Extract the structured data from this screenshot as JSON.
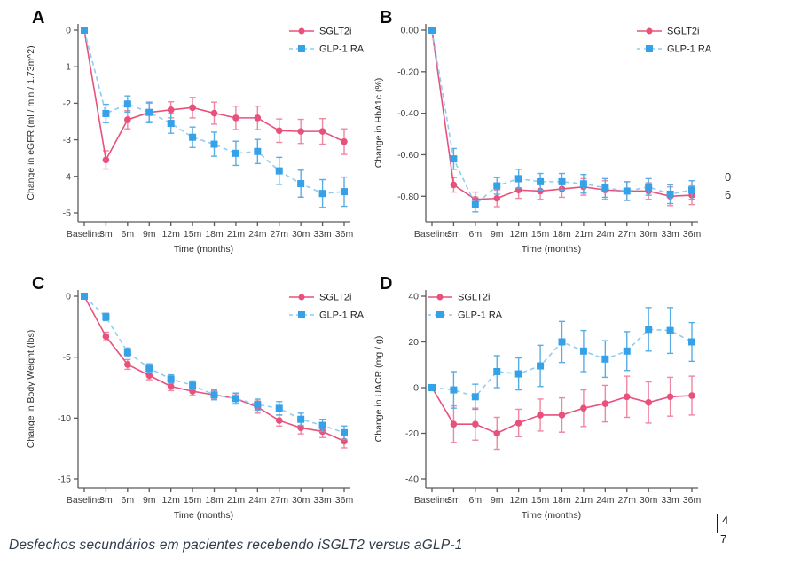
{
  "page": {
    "caption": "Desfechos secundários em pacientes recebendo iSGLT2 versus aGLP-1",
    "fragments": {
      "mid_right_top": "0",
      "mid_right_bottom": "6",
      "page_number_top": "4",
      "page_number_bottom": "7"
    }
  },
  "theme": {
    "sglt2i_color": "#e8517c",
    "sglt2i_err_color": "#ef86a2",
    "glp1_marker_color": "#35a2e8",
    "glp1_line_color": "#8fccf2",
    "glp1_err_color": "#57ade6",
    "axis_color": "#5a5a5a",
    "tick_text_color": "#3c3c3c",
    "caption_color": "#2e3c4b"
  },
  "chart_data": [
    {
      "type": "line",
      "panel_label": "A",
      "ylabel": "Change in eGFR (ml / min / 1.73m^2)",
      "xlabel": "Time (months)",
      "categories": [
        "Baseline",
        "3m",
        "6m",
        "9m",
        "12m",
        "15m",
        "18m",
        "21m",
        "24m",
        "27m",
        "30m",
        "33m",
        "36m"
      ],
      "ylim": [
        -5,
        0
      ],
      "y_ticks": [
        {
          "label": "0",
          "value": 0
        },
        {
          "label": "-1",
          "value": -1
        },
        {
          "label": "-2",
          "value": -2
        },
        {
          "label": "-3",
          "value": -3
        },
        {
          "label": "-4",
          "value": -4
        },
        {
          "label": "-5",
          "value": -5
        }
      ],
      "legend_pos": "top-right",
      "grid": false,
      "series": [
        {
          "name": "SGLT2i",
          "marker": "circle",
          "dash": false,
          "values": [
            0,
            -3.55,
            -2.45,
            -2.25,
            -2.18,
            -2.12,
            -2.27,
            -2.4,
            -2.4,
            -2.75,
            -2.77,
            -2.77,
            -3.05
          ],
          "errors": [
            0,
            0.25,
            0.25,
            0.25,
            0.22,
            0.28,
            0.3,
            0.32,
            0.32,
            0.32,
            0.33,
            0.35,
            0.35
          ]
        },
        {
          "name": "GLP-1 RA",
          "marker": "square",
          "dash": true,
          "values": [
            0,
            -2.28,
            -2.02,
            -2.25,
            -2.55,
            -2.93,
            -3.12,
            -3.37,
            -3.32,
            -3.85,
            -4.2,
            -4.47,
            -4.42
          ],
          "errors": [
            0,
            0.25,
            0.22,
            0.28,
            0.27,
            0.28,
            0.33,
            0.33,
            0.33,
            0.37,
            0.37,
            0.38,
            0.4
          ]
        }
      ]
    },
    {
      "type": "line",
      "panel_label": "B",
      "ylabel": "Change in HbA1c (%)",
      "xlabel": "Time (months)",
      "categories": [
        "Baseline",
        "3m",
        "6m",
        "9m",
        "12m",
        "15m",
        "18m",
        "21m",
        "24m",
        "27m",
        "30m",
        "33m",
        "36m"
      ],
      "ylim": [
        -0.88,
        0
      ],
      "y_ticks": [
        {
          "label": "0.00",
          "value": 0
        },
        {
          "label": "-0.20",
          "value": -0.2
        },
        {
          "label": "-0.40",
          "value": -0.4
        },
        {
          "label": "-0.60",
          "value": -0.6
        },
        {
          "label": "-0.80",
          "value": -0.8
        }
      ],
      "legend_pos": "top-right",
      "grid": false,
      "series": [
        {
          "name": "SGLT2i",
          "marker": "circle",
          "dash": false,
          "values": [
            0,
            -0.745,
            -0.815,
            -0.81,
            -0.77,
            -0.775,
            -0.765,
            -0.755,
            -0.77,
            -0.775,
            -0.775,
            -0.8,
            -0.795
          ],
          "errors": [
            0,
            0.035,
            0.035,
            0.04,
            0.04,
            0.04,
            0.04,
            0.04,
            0.045,
            0.045,
            0.04,
            0.045,
            0.045
          ]
        },
        {
          "name": "GLP-1 RA",
          "marker": "square",
          "dash": true,
          "values": [
            0,
            -0.62,
            -0.84,
            -0.75,
            -0.715,
            -0.73,
            -0.73,
            -0.74,
            -0.76,
            -0.775,
            -0.755,
            -0.79,
            -0.77
          ],
          "errors": [
            0,
            0.05,
            0.035,
            0.04,
            0.045,
            0.04,
            0.04,
            0.045,
            0.045,
            0.045,
            0.04,
            0.045,
            0.045
          ]
        }
      ]
    },
    {
      "type": "line",
      "panel_label": "C",
      "ylabel": "Change in Body Weight (lbs)",
      "xlabel": "Time (months)",
      "categories": [
        "Baseline",
        "3m",
        "6m",
        "9m",
        "12m",
        "15m",
        "18m",
        "21m",
        "24m",
        "27m",
        "30m",
        "33m",
        "36m"
      ],
      "ylim": [
        -15,
        0
      ],
      "y_ticks": [
        {
          "label": "0",
          "value": 0
        },
        {
          "label": "-5",
          "value": -5
        },
        {
          "label": "-10",
          "value": -10
        },
        {
          "label": "-15",
          "value": -15
        }
      ],
      "legend_pos": "top-right",
      "grid": false,
      "series": [
        {
          "name": "SGLT2i",
          "marker": "circle",
          "dash": false,
          "values": [
            0,
            -3.3,
            -5.6,
            -6.5,
            -7.4,
            -7.8,
            -8.1,
            -8.4,
            -9.1,
            -10.2,
            -10.8,
            -11.1,
            -11.9
          ],
          "errors": [
            0,
            0.35,
            0.4,
            0.35,
            0.35,
            0.35,
            0.35,
            0.4,
            0.5,
            0.45,
            0.5,
            0.5,
            0.55
          ]
        },
        {
          "name": "GLP-1 RA",
          "marker": "square",
          "dash": true,
          "values": [
            0,
            -1.7,
            -4.6,
            -5.9,
            -6.8,
            -7.3,
            -8.1,
            -8.4,
            -8.9,
            -9.2,
            -10.1,
            -10.6,
            -11.2
          ],
          "errors": [
            0,
            0.3,
            0.35,
            0.35,
            0.35,
            0.35,
            0.4,
            0.45,
            0.45,
            0.55,
            0.5,
            0.5,
            0.55
          ]
        }
      ]
    },
    {
      "type": "line",
      "panel_label": "D",
      "ylabel": "Change in UACR (mg / g)",
      "xlabel": "Time (months)",
      "categories": [
        "Baseline",
        "3m",
        "6m",
        "9m",
        "12m",
        "15m",
        "18m",
        "21m",
        "24m",
        "27m",
        "30m",
        "33m",
        "36m"
      ],
      "ylim": [
        -40,
        40
      ],
      "y_ticks": [
        {
          "label": "40",
          "value": 40
        },
        {
          "label": "20",
          "value": 20
        },
        {
          "label": "0",
          "value": 0
        },
        {
          "label": "-20",
          "value": -20
        },
        {
          "label": "-40",
          "value": -40
        }
      ],
      "legend_pos": "top-left",
      "grid": false,
      "series": [
        {
          "name": "SGLT2i",
          "marker": "circle",
          "dash": false,
          "values": [
            0,
            -16,
            -16,
            -20,
            -15.5,
            -12,
            -12,
            -9,
            -7,
            -4,
            -6.5,
            -4,
            -3.5
          ],
          "errors": [
            0,
            8,
            7,
            7,
            6,
            7,
            7.5,
            8,
            8,
            9,
            9,
            8.5,
            8.5
          ]
        },
        {
          "name": "GLP-1 RA",
          "marker": "square",
          "dash": true,
          "values": [
            0,
            -1,
            -4,
            7,
            6,
            9.5,
            20,
            16,
            12.5,
            16,
            25.5,
            25,
            20
          ],
          "errors": [
            0,
            8,
            5.5,
            7,
            7,
            9,
            9,
            9,
            8,
            8.5,
            9.5,
            10,
            8.5
          ]
        }
      ]
    }
  ]
}
